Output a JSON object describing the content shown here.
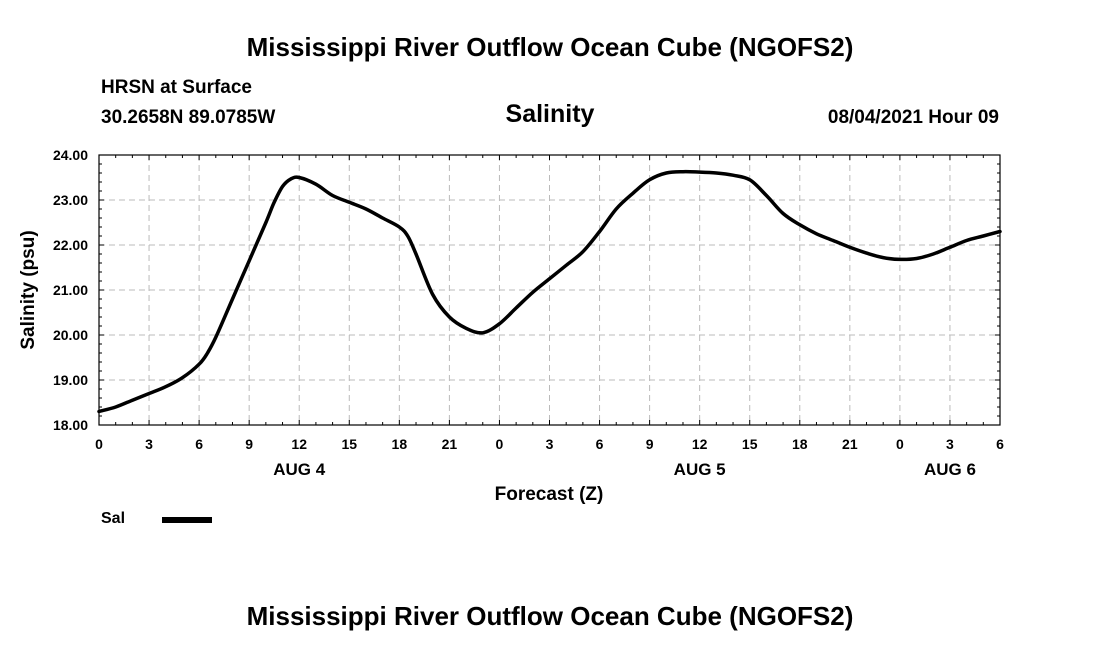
{
  "header": {
    "title": "Mississippi River Outflow Ocean Cube (NGOFS2)",
    "station": "HRSN at Surface",
    "coords": "30.2658N  89.0785W",
    "datetime": "08/04/2021 Hour 09"
  },
  "footer": {
    "title": "Mississippi River Outflow Ocean Cube (NGOFS2)"
  },
  "legend": {
    "label": "Sal",
    "color": "#000000"
  },
  "chart_data": {
    "type": "line",
    "title": "Salinity",
    "xlabel": "Forecast (Z)",
    "ylabel": "Salinity (psu)",
    "xlim": [
      0,
      54
    ],
    "ylim": [
      18.0,
      24.0
    ],
    "grid": true,
    "x_tick_labels": [
      "0",
      "3",
      "6",
      "9",
      "12",
      "15",
      "18",
      "21",
      "0",
      "3",
      "6",
      "9",
      "12",
      "15",
      "18",
      "21",
      "0",
      "3",
      "6"
    ],
    "y_tick_labels": [
      "18.00",
      "19.00",
      "20.00",
      "21.00",
      "22.00",
      "23.00",
      "24.00"
    ],
    "y_tick_values": [
      18,
      19,
      20,
      21,
      22,
      23,
      24
    ],
    "day_labels": [
      {
        "label": "AUG 4",
        "x": 12
      },
      {
        "label": "AUG 5",
        "x": 36
      },
      {
        "label": "AUG 6",
        "x": 51
      }
    ],
    "series": [
      {
        "name": "Sal",
        "x": [
          0,
          1,
          2,
          3,
          4,
          5,
          6,
          6.5,
          7,
          8,
          9,
          10,
          10.5,
          11,
          11.5,
          12,
          13,
          14,
          15,
          16,
          17,
          18,
          18.5,
          19,
          20,
          21,
          22,
          23,
          24,
          25,
          26,
          27,
          28,
          29,
          30,
          31,
          32,
          33,
          34,
          35,
          36,
          37,
          38,
          39,
          40,
          41,
          42,
          43,
          44,
          45,
          46,
          47,
          48,
          49,
          50,
          51,
          52,
          53,
          54
        ],
        "values": [
          18.3,
          18.4,
          18.55,
          18.7,
          18.85,
          19.05,
          19.35,
          19.6,
          19.95,
          20.8,
          21.65,
          22.5,
          22.95,
          23.3,
          23.47,
          23.5,
          23.35,
          23.1,
          22.95,
          22.8,
          22.6,
          22.4,
          22.2,
          21.8,
          20.9,
          20.4,
          20.15,
          20.05,
          20.25,
          20.6,
          20.95,
          21.25,
          21.55,
          21.85,
          22.3,
          22.8,
          23.15,
          23.45,
          23.6,
          23.63,
          23.62,
          23.6,
          23.55,
          23.45,
          23.1,
          22.7,
          22.45,
          22.25,
          22.1,
          21.95,
          21.82,
          21.72,
          21.68,
          21.7,
          21.8,
          21.95,
          22.1,
          22.2,
          22.3
        ]
      }
    ]
  }
}
